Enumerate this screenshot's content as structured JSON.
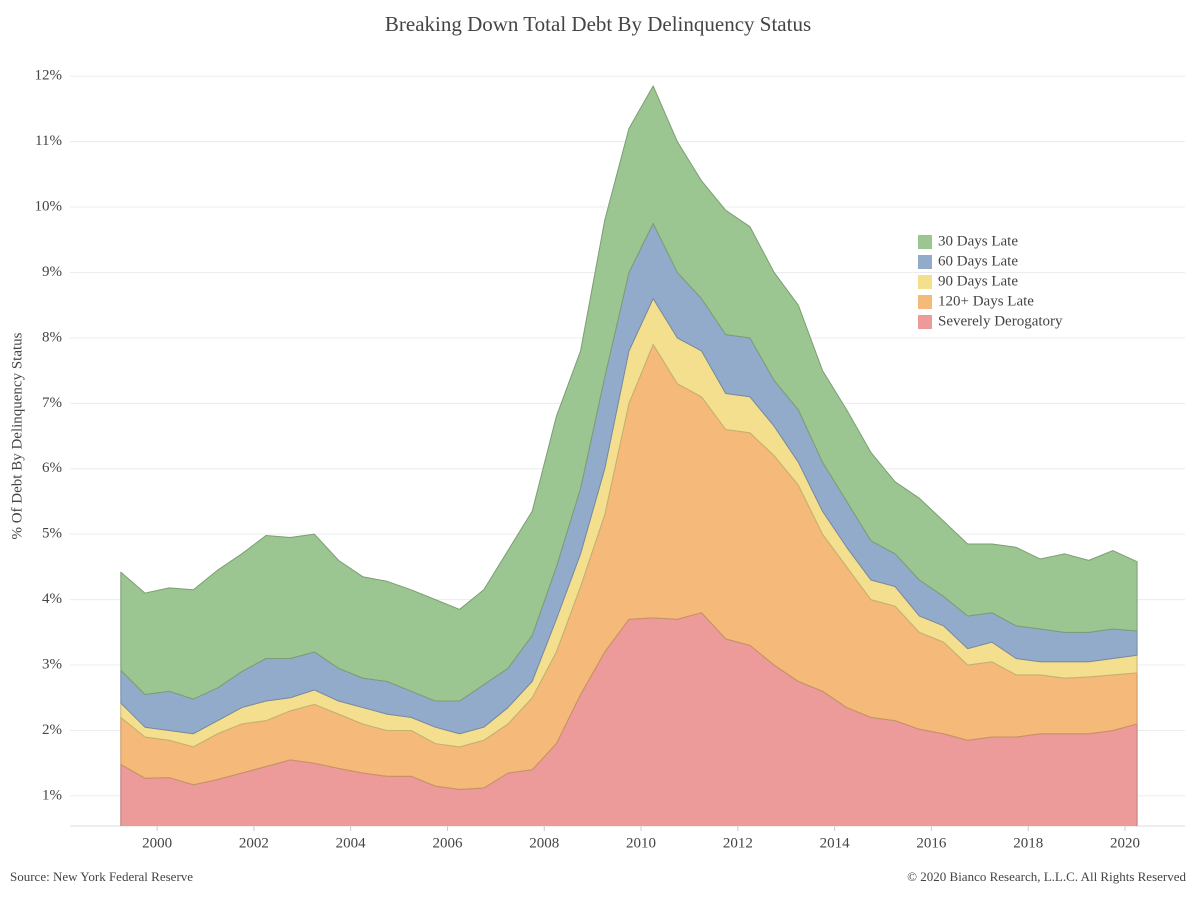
{
  "chart_data": {
    "type": "stacked_area",
    "title": "Breaking Down Total Debt By Delinquency Status",
    "ylabel": "% Of Debt By Delinquency Status",
    "source": "Source: New York Federal Reserve",
    "copyright": "© 2020 Bianco Research, L.L.C. All Rights Reserved",
    "x": [
      1999.25,
      1999.75,
      2000.25,
      2000.75,
      2001.25,
      2001.75,
      2002.25,
      2002.75,
      2003.25,
      2003.75,
      2004.25,
      2004.75,
      2005.25,
      2005.75,
      2006.25,
      2006.75,
      2007.25,
      2007.75,
      2008.25,
      2008.75,
      2009.25,
      2009.75,
      2010.25,
      2010.75,
      2011.25,
      2011.75,
      2012.25,
      2012.75,
      2013.25,
      2013.75,
      2014.25,
      2014.75,
      2015.25,
      2015.75,
      2016.25,
      2016.75,
      2017.25,
      2017.75,
      2018.25,
      2018.75,
      2019.25,
      2019.75,
      2020.25
    ],
    "series": [
      {
        "name": "Severely Derogatory",
        "color": "#ec9a9a",
        "values": [
          1.48,
          1.27,
          1.28,
          1.17,
          1.25,
          1.35,
          1.45,
          1.55,
          1.5,
          1.42,
          1.35,
          1.3,
          1.3,
          1.15,
          1.1,
          1.12,
          1.35,
          1.4,
          1.8,
          2.55,
          3.2,
          3.7,
          3.72,
          3.7,
          3.8,
          3.4,
          3.3,
          3.0,
          2.75,
          2.6,
          2.35,
          2.2,
          2.15,
          2.02,
          1.95,
          1.85,
          1.9,
          1.9,
          1.95,
          1.95,
          1.95,
          2.0,
          2.1
        ]
      },
      {
        "name": "120+ Days Late",
        "color": "#f5b97a",
        "values": [
          0.72,
          0.63,
          0.57,
          0.58,
          0.7,
          0.75,
          0.7,
          0.75,
          0.9,
          0.83,
          0.75,
          0.7,
          0.7,
          0.65,
          0.65,
          0.73,
          0.75,
          1.1,
          1.4,
          1.65,
          2.1,
          3.3,
          4.18,
          3.6,
          3.3,
          3.2,
          3.25,
          3.2,
          3.0,
          2.4,
          2.15,
          1.8,
          1.75,
          1.48,
          1.4,
          1.15,
          1.15,
          0.95,
          0.9,
          0.85,
          0.87,
          0.85,
          0.78
        ]
      },
      {
        "name": "90 Days Late",
        "color": "#f4df8f",
        "values": [
          0.22,
          0.15,
          0.15,
          0.2,
          0.2,
          0.25,
          0.3,
          0.2,
          0.22,
          0.2,
          0.25,
          0.25,
          0.2,
          0.25,
          0.2,
          0.2,
          0.25,
          0.25,
          0.5,
          0.5,
          0.7,
          0.8,
          0.7,
          0.7,
          0.7,
          0.55,
          0.55,
          0.45,
          0.35,
          0.35,
          0.3,
          0.3,
          0.3,
          0.25,
          0.25,
          0.25,
          0.3,
          0.25,
          0.2,
          0.25,
          0.23,
          0.25,
          0.27
        ]
      },
      {
        "name": "60 Days Late",
        "color": "#93abcb",
        "values": [
          0.5,
          0.5,
          0.6,
          0.53,
          0.5,
          0.55,
          0.65,
          0.6,
          0.58,
          0.5,
          0.45,
          0.5,
          0.4,
          0.4,
          0.5,
          0.65,
          0.6,
          0.7,
          0.8,
          1.0,
          1.4,
          1.2,
          1.15,
          1.0,
          0.8,
          0.9,
          0.9,
          0.7,
          0.8,
          0.75,
          0.7,
          0.6,
          0.5,
          0.55,
          0.45,
          0.5,
          0.45,
          0.5,
          0.5,
          0.45,
          0.45,
          0.45,
          0.37
        ]
      },
      {
        "name": "30 Days Late",
        "color": "#9bc591",
        "values": [
          1.5,
          1.55,
          1.58,
          1.67,
          1.8,
          1.8,
          1.88,
          1.85,
          1.8,
          1.65,
          1.55,
          1.53,
          1.55,
          1.55,
          1.4,
          1.45,
          1.8,
          1.9,
          2.3,
          2.1,
          2.4,
          2.2,
          2.1,
          2.0,
          1.8,
          1.9,
          1.7,
          1.65,
          1.6,
          1.4,
          1.4,
          1.35,
          1.1,
          1.25,
          1.15,
          1.1,
          1.05,
          1.2,
          1.07,
          1.2,
          1.1,
          1.2,
          1.06
        ]
      }
    ],
    "xlim": [
      1998.2,
      2021.24
    ],
    "xticks": [
      2000,
      2002,
      2004,
      2006,
      2008,
      2010,
      2012,
      2014,
      2016,
      2018,
      2020
    ],
    "ylim": [
      0.54,
      12.4
    ],
    "yticks": [
      {
        "value": 1,
        "label": "1%"
      },
      {
        "value": 2,
        "label": "2%"
      },
      {
        "value": 3,
        "label": "3%"
      },
      {
        "value": 4,
        "label": "4%"
      },
      {
        "value": 5,
        "label": "5%"
      },
      {
        "value": 6,
        "label": "6%"
      },
      {
        "value": 7,
        "label": "7%"
      },
      {
        "value": 8,
        "label": "8%"
      },
      {
        "value": 9,
        "label": "9%"
      },
      {
        "value": 10,
        "label": "10%"
      },
      {
        "value": 11,
        "label": "11%"
      },
      {
        "value": 12,
        "label": "12%"
      }
    ],
    "grid": true
  }
}
